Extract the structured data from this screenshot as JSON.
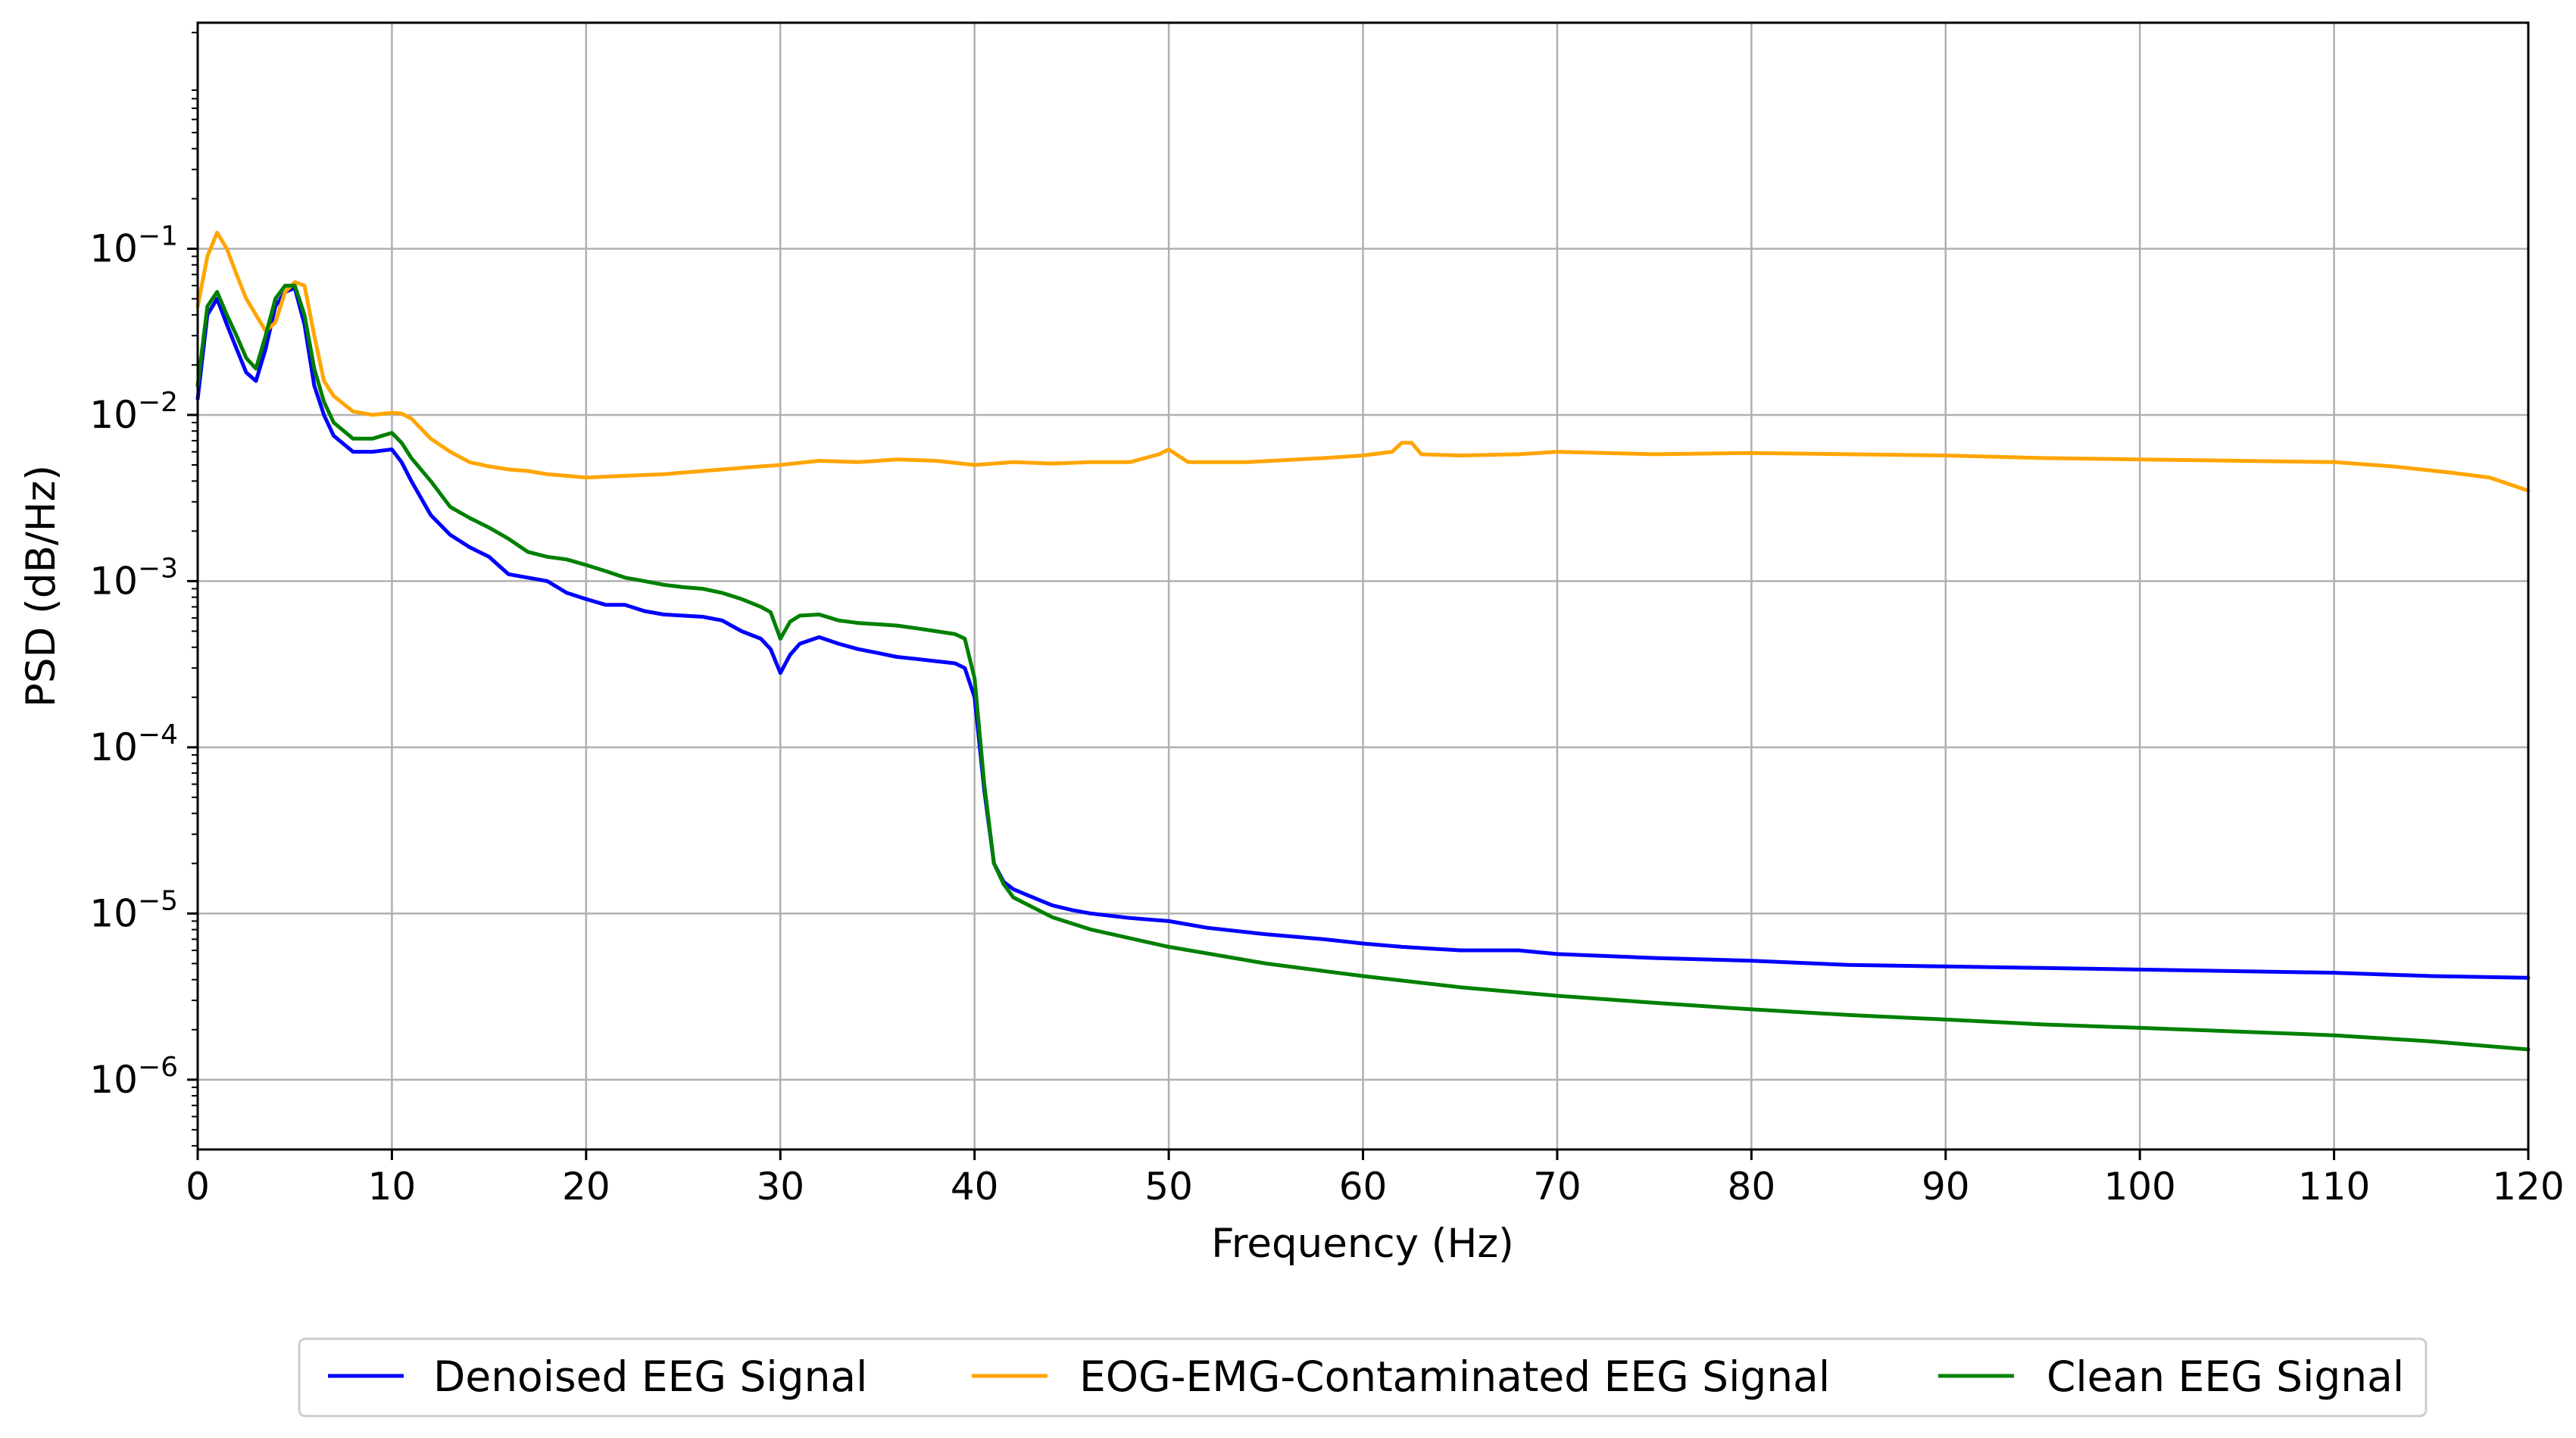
{
  "chart_data": {
    "type": "line",
    "title": "",
    "xlabel": "Frequency (Hz)",
    "ylabel": "PSD (dB/Hz)",
    "xscale": "linear",
    "yscale": "log",
    "xlim": [
      0,
      120
    ],
    "ylim_exponent": [
      -6.42,
      0.36
    ],
    "grid": true,
    "legend_position": "bottom-center",
    "x_ticks": [
      0,
      10,
      20,
      30,
      40,
      50,
      60,
      70,
      80,
      90,
      100,
      110,
      120
    ],
    "x_tick_labels": [
      "0",
      "10",
      "20",
      "30",
      "40",
      "50",
      "60",
      "70",
      "80",
      "90",
      "100",
      "110",
      "120"
    ],
    "y_ticks": [
      {
        "exponent": -1,
        "base": "10",
        "sup": "−1"
      },
      {
        "exponent": -2,
        "base": "10",
        "sup": "−2"
      },
      {
        "exponent": -3,
        "base": "10",
        "sup": "−3"
      },
      {
        "exponent": -4,
        "base": "10",
        "sup": "−4"
      },
      {
        "exponent": -5,
        "base": "10",
        "sup": "−5"
      },
      {
        "exponent": -6,
        "base": "10",
        "sup": "−6"
      }
    ],
    "series": [
      {
        "name": "Denoised EEG Signal",
        "color": "#0000ff",
        "x": [
          0,
          0.5,
          1,
          1.5,
          2,
          2.5,
          3,
          3.5,
          4,
          4.5,
          5,
          5.5,
          6,
          6.5,
          7,
          8,
          9,
          10,
          10.5,
          11,
          12,
          13,
          14,
          15,
          16,
          17,
          18,
          19,
          20,
          21,
          22,
          23,
          24,
          25,
          26,
          27,
          28,
          29,
          29.5,
          30,
          30.5,
          31,
          32,
          33,
          34,
          35,
          36,
          37,
          38,
          39,
          39.5,
          40,
          40.5,
          41,
          41.5,
          42,
          43,
          44,
          45,
          46,
          48,
          50,
          52,
          55,
          58,
          60,
          62,
          65,
          68,
          70,
          75,
          80,
          85,
          90,
          95,
          100,
          105,
          110,
          115,
          120
        ],
        "y": [
          0.0125,
          0.04,
          0.05,
          0.035,
          0.025,
          0.018,
          0.016,
          0.025,
          0.045,
          0.055,
          0.058,
          0.035,
          0.015,
          0.01,
          0.0075,
          0.006,
          0.006,
          0.0062,
          0.0052,
          0.004,
          0.0025,
          0.0019,
          0.0016,
          0.0014,
          0.0011,
          0.00105,
          0.001,
          0.00085,
          0.00078,
          0.00072,
          0.00072,
          0.00066,
          0.00063,
          0.00062,
          0.00061,
          0.00058,
          0.0005,
          0.00045,
          0.00039,
          0.00028,
          0.00036,
          0.00042,
          0.00046,
          0.00042,
          0.00039,
          0.00037,
          0.00035,
          0.00034,
          0.00033,
          0.00032,
          0.0003,
          0.0002,
          5.5e-05,
          2e-05,
          1.55e-05,
          1.4e-05,
          1.25e-05,
          1.12e-05,
          1.05e-05,
          1e-05,
          9.4e-06,
          9e-06,
          8.2e-06,
          7.5e-06,
          7e-06,
          6.6e-06,
          6.3e-06,
          6e-06,
          6e-06,
          5.7e-06,
          5.4e-06,
          5.2e-06,
          4.9e-06,
          4.8e-06,
          4.7e-06,
          4.6e-06,
          4.5e-06,
          4.4e-06,
          4.2e-06,
          4.1e-06
        ]
      },
      {
        "name": "EOG-EMG-Contaminated EEG Signal",
        "color": "#ffa500",
        "x": [
          0,
          0.5,
          1,
          1.5,
          2,
          2.5,
          3,
          3.5,
          4,
          4.5,
          5,
          5.5,
          6,
          6.5,
          7,
          8,
          9,
          10,
          10.5,
          11,
          12,
          13,
          14,
          15,
          16,
          17,
          18,
          19,
          20,
          22,
          24,
          26,
          28,
          30,
          32,
          34,
          36,
          38,
          40,
          42,
          44,
          46,
          48,
          49.5,
          50,
          51,
          54,
          58,
          60,
          61.5,
          62,
          62.5,
          63,
          65,
          68,
          70,
          75,
          80,
          85,
          90,
          95,
          100,
          105,
          110,
          113,
          116,
          118,
          120
        ],
        "y": [
          0.045,
          0.09,
          0.125,
          0.1,
          0.07,
          0.05,
          0.04,
          0.032,
          0.036,
          0.055,
          0.063,
          0.06,
          0.03,
          0.016,
          0.013,
          0.0105,
          0.01,
          0.0103,
          0.0102,
          0.0095,
          0.0072,
          0.006,
          0.0052,
          0.0049,
          0.0047,
          0.0046,
          0.0044,
          0.0043,
          0.0042,
          0.0043,
          0.0044,
          0.0046,
          0.0048,
          0.005,
          0.0053,
          0.0052,
          0.0054,
          0.0053,
          0.005,
          0.0052,
          0.0051,
          0.0052,
          0.0052,
          0.0058,
          0.0062,
          0.0052,
          0.0052,
          0.0055,
          0.0057,
          0.006,
          0.0068,
          0.0068,
          0.0058,
          0.0057,
          0.0058,
          0.006,
          0.0058,
          0.0059,
          0.0058,
          0.0057,
          0.0055,
          0.0054,
          0.0053,
          0.0052,
          0.0049,
          0.0045,
          0.0042,
          0.0035
        ]
      },
      {
        "name": "Clean EEG Signal",
        "color": "#008000",
        "x": [
          0,
          0.5,
          1,
          1.5,
          2,
          2.5,
          3,
          3.5,
          4,
          4.5,
          5,
          5.5,
          6,
          6.5,
          7,
          8,
          9,
          10,
          10.5,
          11,
          12,
          13,
          14,
          15,
          16,
          17,
          18,
          19,
          20,
          21,
          22,
          23,
          24,
          25,
          26,
          27,
          28,
          29,
          29.5,
          30,
          30.5,
          31,
          32,
          33,
          34,
          35,
          36,
          37,
          38,
          39,
          39.5,
          40,
          40.5,
          41,
          41.5,
          42,
          44,
          46,
          50,
          55,
          60,
          65,
          70,
          75,
          80,
          85,
          90,
          95,
          100,
          105,
          110,
          115,
          120
        ],
        "y": [
          0.015,
          0.045,
          0.055,
          0.04,
          0.03,
          0.022,
          0.019,
          0.03,
          0.05,
          0.06,
          0.06,
          0.04,
          0.019,
          0.012,
          0.009,
          0.0072,
          0.0072,
          0.0078,
          0.0068,
          0.0055,
          0.004,
          0.0028,
          0.0024,
          0.0021,
          0.0018,
          0.0015,
          0.0014,
          0.00135,
          0.00125,
          0.00115,
          0.00105,
          0.001,
          0.00095,
          0.00092,
          0.0009,
          0.00085,
          0.00078,
          0.0007,
          0.00065,
          0.00045,
          0.00057,
          0.00062,
          0.00063,
          0.00058,
          0.00056,
          0.00055,
          0.00054,
          0.00052,
          0.0005,
          0.00048,
          0.00045,
          0.00026,
          6e-05,
          2e-05,
          1.5e-05,
          1.25e-05,
          9.5e-06,
          8e-06,
          6.3e-06,
          5e-06,
          4.2e-06,
          3.6e-06,
          3.2e-06,
          2.9e-06,
          2.65e-06,
          2.45e-06,
          2.3e-06,
          2.15e-06,
          2.05e-06,
          1.95e-06,
          1.85e-06,
          1.7e-06,
          1.52e-06
        ]
      }
    ]
  }
}
